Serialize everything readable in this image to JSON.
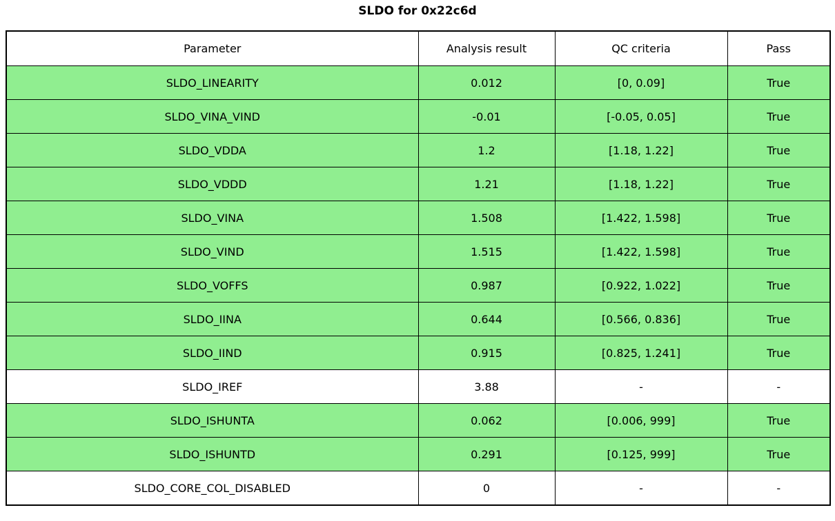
{
  "title": "SLDO for 0x22c6d",
  "colors": {
    "pass_row_green": "#90ee90",
    "plain_row_white": "#ffffff",
    "border_black": "#000000"
  },
  "table": {
    "headers": [
      "Parameter",
      "Analysis result",
      "QC criteria",
      "Pass"
    ],
    "rows": [
      {
        "parameter": "SLDO_LINEARITY",
        "result": "0.012",
        "criteria": "[0, 0.09]",
        "pass": "True",
        "highlight": true
      },
      {
        "parameter": "SLDO_VINA_VIND",
        "result": "-0.01",
        "criteria": "[-0.05, 0.05]",
        "pass": "True",
        "highlight": true
      },
      {
        "parameter": "SLDO_VDDA",
        "result": "1.2",
        "criteria": "[1.18, 1.22]",
        "pass": "True",
        "highlight": true
      },
      {
        "parameter": "SLDO_VDDD",
        "result": "1.21",
        "criteria": "[1.18, 1.22]",
        "pass": "True",
        "highlight": true
      },
      {
        "parameter": "SLDO_VINA",
        "result": "1.508",
        "criteria": "[1.422, 1.598]",
        "pass": "True",
        "highlight": true
      },
      {
        "parameter": "SLDO_VIND",
        "result": "1.515",
        "criteria": "[1.422, 1.598]",
        "pass": "True",
        "highlight": true
      },
      {
        "parameter": "SLDO_VOFFS",
        "result": "0.987",
        "criteria": "[0.922, 1.022]",
        "pass": "True",
        "highlight": true
      },
      {
        "parameter": "SLDO_IINA",
        "result": "0.644",
        "criteria": "[0.566, 0.836]",
        "pass": "True",
        "highlight": true
      },
      {
        "parameter": "SLDO_IIND",
        "result": "0.915",
        "criteria": "[0.825, 1.241]",
        "pass": "True",
        "highlight": true
      },
      {
        "parameter": "SLDO_IREF",
        "result": "3.88",
        "criteria": "-",
        "pass": "-",
        "highlight": false
      },
      {
        "parameter": "SLDO_ISHUNTA",
        "result": "0.062",
        "criteria": "[0.006, 999]",
        "pass": "True",
        "highlight": true
      },
      {
        "parameter": "SLDO_ISHUNTD",
        "result": "0.291",
        "criteria": "[0.125, 999]",
        "pass": "True",
        "highlight": true
      },
      {
        "parameter": "SLDO_CORE_COL_DISABLED",
        "result": "0",
        "criteria": "-",
        "pass": "-",
        "highlight": false
      }
    ]
  }
}
